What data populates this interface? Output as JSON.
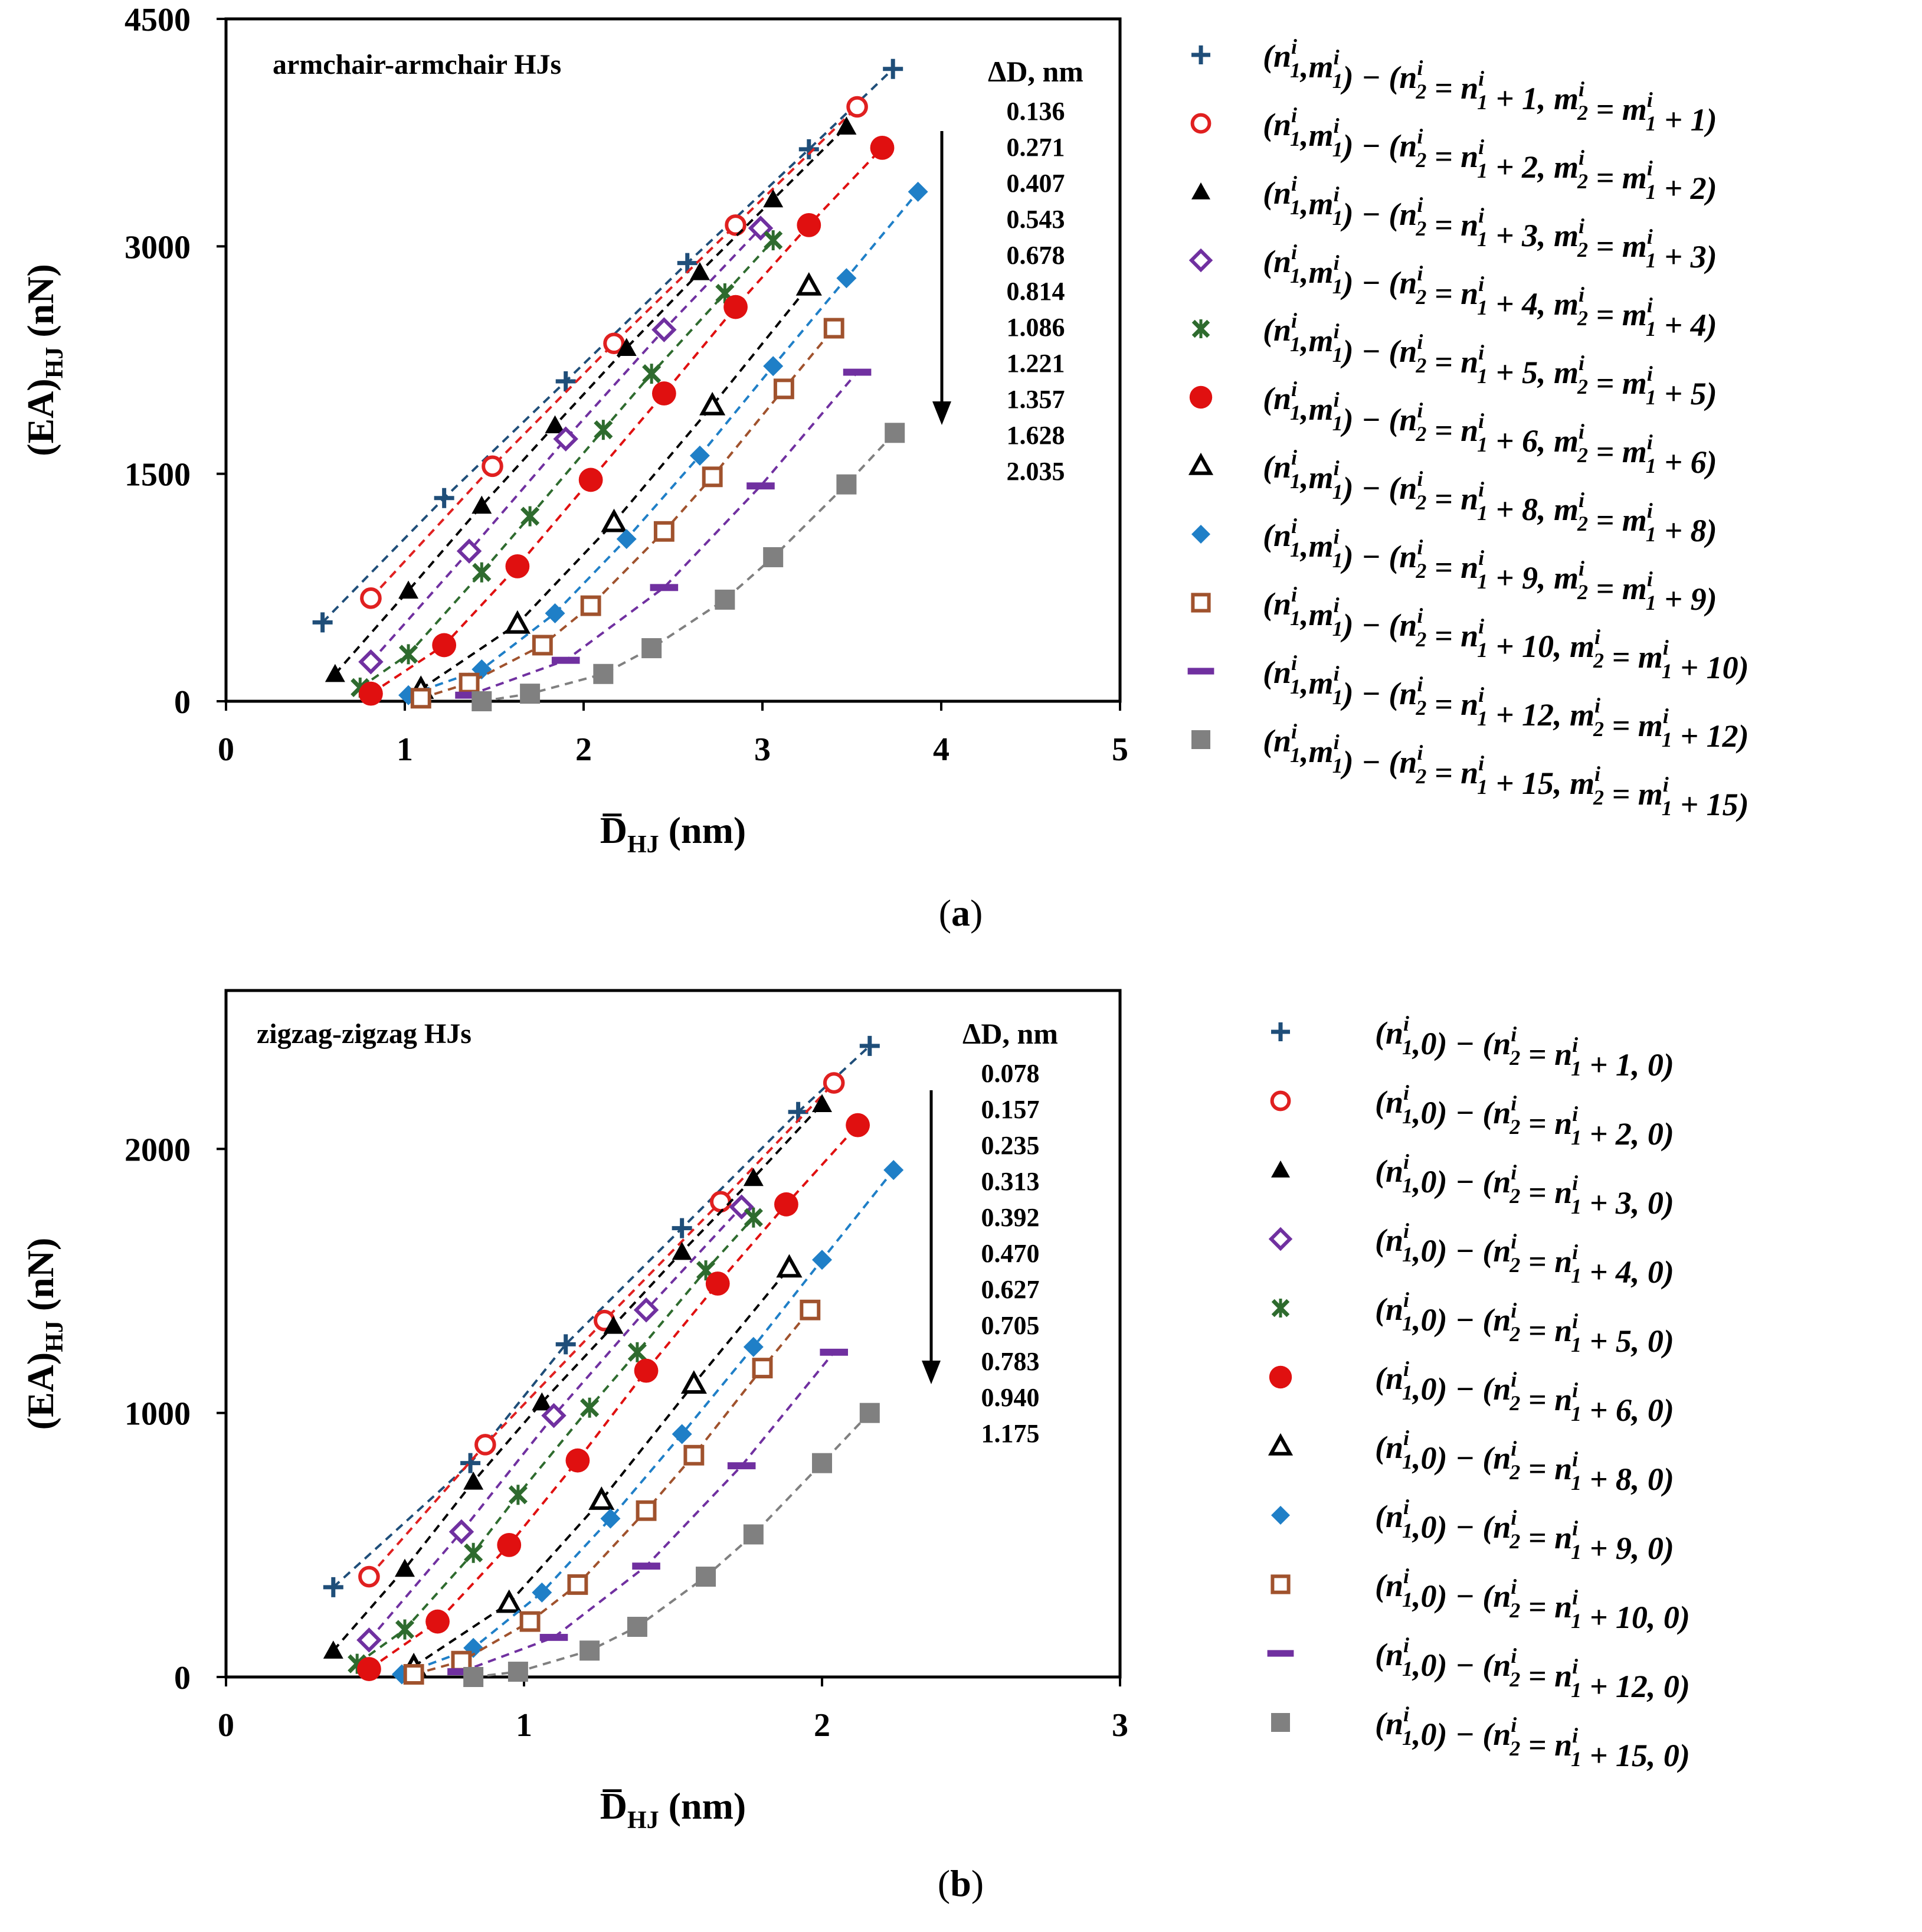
{
  "chart_data": [
    {
      "type": "scatter",
      "panel_label": "a",
      "title": "armchair-armchair HJs",
      "xlabel": "D̅",
      "xlabel_sub": "HJ",
      "xlabel_unit": " (nm)",
      "ylabel": "(EA)",
      "ylabel_sub": "HJ",
      "ylabel_unit": " (nN)",
      "xlim": [
        0,
        5
      ],
      "ylim": [
        0,
        4500
      ],
      "xticks": [
        0,
        1,
        2,
        3,
        4,
        5
      ],
      "yticks": [
        0,
        1500,
        3000,
        4500
      ],
      "xtick_labels": [
        "0",
        "1",
        "2",
        "3",
        "4",
        "5"
      ],
      "ytick_labels": [
        "0",
        "1500",
        "3000",
        "4500"
      ],
      "delta_d_header": "ΔD, nm",
      "delta_d_values": [
        "0.136",
        "0.271",
        "0.407",
        "0.543",
        "0.678",
        "0.814",
        "1.086",
        "1.221",
        "1.357",
        "1.628",
        "2.035"
      ],
      "series": [
        {
          "name": "(n1i,m1i) − (n2i = n1i + 1, m2i = m1i + 1)",
          "marker": "plus",
          "color": "#1f4e79",
          "x": [
            0.54,
            1.22,
            1.9,
            2.58,
            3.26,
            3.73
          ],
          "y": [
            520,
            1340,
            2110,
            2890,
            3640,
            4170
          ]
        },
        {
          "name": "(n1i,m1i) − (n2i = n1i + 2, m2i = m1i + 2)",
          "marker": "circle-open",
          "color": "#e02020",
          "x": [
            0.81,
            1.49,
            2.17,
            2.85,
            3.53
          ],
          "y": [
            680,
            1550,
            2360,
            3140,
            3920
          ]
        },
        {
          "name": "(n1i,m1i) − (n2i = n1i + 3, m2i = m1i + 3)",
          "marker": "triangle",
          "color": "#000000",
          "x": [
            0.61,
            1.02,
            1.43,
            1.84,
            2.24,
            2.65,
            3.06,
            3.47
          ],
          "y": [
            180,
            730,
            1290,
            1820,
            2330,
            2830,
            3310,
            3790
          ]
        },
        {
          "name": "(n1i,m1i) − (n2i = n1i + 4, m2i = m1i + 4)",
          "marker": "diamond-open",
          "color": "#7030a0",
          "x": [
            0.81,
            1.36,
            1.9,
            2.45,
            2.99
          ],
          "y": [
            260,
            990,
            1730,
            2450,
            3120
          ]
        },
        {
          "name": "(n1i,m1i) − (n2i = n1i + 5, m2i = m1i + 5)",
          "marker": "star",
          "color": "#2e6b2e",
          "x": [
            0.75,
            1.02,
            1.43,
            1.7,
            2.11,
            2.38,
            2.79,
            3.06
          ],
          "y": [
            90,
            310,
            850,
            1220,
            1790,
            2160,
            2690,
            3040
          ]
        },
        {
          "name": "(n1i,m1i) − (n2i = n1i + 6, m2i = m1i + 6)",
          "marker": "circle-filled",
          "color": "#e01010",
          "x": [
            0.81,
            1.22,
            1.63,
            2.04,
            2.45,
            2.85,
            3.26,
            3.67
          ],
          "y": [
            50,
            370,
            890,
            1460,
            2030,
            2600,
            3140,
            3650
          ]
        },
        {
          "name": "(n1i,m1i) − (n2i = n1i + 8, m2i = m1i + 8)",
          "marker": "triangle-open",
          "color": "#000000",
          "x": [
            1.09,
            1.63,
            2.17,
            2.72,
            3.26
          ],
          "y": [
            80,
            510,
            1180,
            1950,
            2740
          ]
        },
        {
          "name": "(n1i,m1i) − (n2i = n1i + 9, m2i = m1i + 9)",
          "marker": "diamond-filled",
          "color": "#1f7fc7",
          "x": [
            1.02,
            1.43,
            1.84,
            2.24,
            2.65,
            3.06,
            3.47,
            3.87
          ],
          "y": [
            40,
            210,
            580,
            1070,
            1620,
            2210,
            2790,
            3360
          ]
        },
        {
          "name": "(n1i,m1i) − (n2i = n1i + 10, m2i = m1i + 10)",
          "marker": "square-open",
          "color": "#a0522d",
          "x": [
            1.09,
            1.36,
            1.77,
            2.04,
            2.45,
            2.72,
            3.12,
            3.4
          ],
          "y": [
            20,
            120,
            370,
            630,
            1120,
            1480,
            2060,
            2460
          ]
        },
        {
          "name": "(n1i,m1i) − (n2i = n1i + 12, m2i = m1i + 12)",
          "marker": "dash",
          "color": "#7030a0",
          "x": [
            1.36,
            1.9,
            2.45,
            2.99,
            3.53
          ],
          "y": [
            40,
            270,
            750,
            1420,
            2170
          ]
        },
        {
          "name": "(n1i,m1i) − (n2i = n1i + 15, m2i = m1i + 15)",
          "marker": "square-filled",
          "color": "#808080",
          "x": [
            1.43,
            1.7,
            2.11,
            2.38,
            2.79,
            3.06,
            3.47,
            3.74
          ],
          "y": [
            0,
            50,
            180,
            350,
            670,
            950,
            1430,
            1770
          ]
        }
      ]
    },
    {
      "type": "scatter",
      "panel_label": "b",
      "title": "zigzag-zigzag HJs",
      "xlabel": "D̅",
      "xlabel_sub": "HJ",
      "xlabel_unit": " (nm)",
      "ylabel": "(EA)",
      "ylabel_sub": "HJ",
      "ylabel_unit": " (nN)",
      "xlim": [
        0,
        3
      ],
      "ylim": [
        0,
        2600
      ],
      "xticks": [
        0,
        1,
        2,
        3
      ],
      "yticks": [
        0,
        1000,
        2000
      ],
      "xtick_labels": [
        "0",
        "1",
        "2",
        "3"
      ],
      "ytick_labels": [
        "0",
        "1000",
        "2000"
      ],
      "delta_d_header": "ΔD, nm",
      "delta_d_values": [
        "0.078",
        "0.157",
        "0.235",
        "0.313",
        "0.392",
        "0.470",
        "0.627",
        "0.705",
        "0.783",
        "0.940",
        "1.175"
      ],
      "series": [
        {
          "name": "(n1i,0) − (n2i = n1i + 1, 0)",
          "marker": "plus",
          "color": "#1f4e79",
          "x": [
            0.36,
            0.82,
            1.14,
            1.53,
            1.92,
            2.16
          ],
          "y": [
            340,
            810,
            1260,
            1700,
            2140,
            2390
          ]
        },
        {
          "name": "(n1i,0) − (n2i = n1i + 2, 0)",
          "marker": "circle-open",
          "color": "#e02020",
          "x": [
            0.48,
            0.87,
            1.27,
            1.66,
            2.04
          ],
          "y": [
            380,
            880,
            1350,
            1800,
            2250
          ]
        },
        {
          "name": "(n1i,0) − (n2i = n1i + 3, 0)",
          "marker": "triangle",
          "color": "#000000",
          "x": [
            0.36,
            0.6,
            0.83,
            1.06,
            1.3,
            1.53,
            1.77,
            2.0
          ],
          "y": [
            100,
            410,
            740,
            1040,
            1330,
            1610,
            1890,
            2170
          ]
        },
        {
          "name": "(n1i,0) − (n2i = n1i + 4, 0)",
          "marker": "diamond-open",
          "color": "#7030a0",
          "x": [
            0.48,
            0.79,
            1.1,
            1.41,
            1.73
          ],
          "y": [
            140,
            550,
            990,
            1390,
            1780
          ]
        },
        {
          "name": "(n1i,0) − (n2i = n1i + 5, 0)",
          "marker": "star",
          "color": "#2e6b2e",
          "x": [
            0.44,
            0.6,
            0.83,
            0.98,
            1.22,
            1.38,
            1.61,
            1.77
          ],
          "y": [
            50,
            180,
            470,
            690,
            1020,
            1230,
            1540,
            1740
          ]
        },
        {
          "name": "(n1i,0) − (n2i = n1i + 6, 0)",
          "marker": "circle-filled",
          "color": "#e01010",
          "x": [
            0.48,
            0.71,
            0.95,
            1.18,
            1.41,
            1.65,
            1.88,
            2.12
          ],
          "y": [
            30,
            210,
            500,
            820,
            1160,
            1490,
            1790,
            2090
          ]
        },
        {
          "name": "(n1i,0) − (n2i = n1i + 8, 0)",
          "marker": "triangle-open",
          "color": "#000000",
          "x": [
            0.63,
            0.95,
            1.26,
            1.57,
            1.89
          ],
          "y": [
            40,
            280,
            670,
            1110,
            1550
          ]
        },
        {
          "name": "(n1i,0) − (n2i = n1i + 9, 0)",
          "marker": "diamond-filled",
          "color": "#1f7fc7",
          "x": [
            0.59,
            0.83,
            1.06,
            1.29,
            1.53,
            1.77,
            2.0,
            2.24
          ],
          "y": [
            10,
            110,
            320,
            600,
            920,
            1250,
            1580,
            1920
          ]
        },
        {
          "name": "(n1i,0) − (n2i = n1i + 10, 0)",
          "marker": "square-open",
          "color": "#a0522d",
          "x": [
            0.63,
            0.79,
            1.02,
            1.18,
            1.41,
            1.57,
            1.8,
            1.96
          ],
          "y": [
            10,
            60,
            210,
            350,
            630,
            840,
            1170,
            1390
          ]
        },
        {
          "name": "(n1i,0) − (n2i = n1i + 12, 0)",
          "marker": "dash",
          "color": "#7030a0",
          "x": [
            0.79,
            1.1,
            1.41,
            1.73,
            2.04
          ],
          "y": [
            20,
            150,
            420,
            800,
            1230
          ]
        },
        {
          "name": "(n1i,0) − (n2i = n1i + 15, 0)",
          "marker": "square-filled",
          "color": "#808080",
          "x": [
            0.83,
            0.98,
            1.22,
            1.38,
            1.61,
            1.77,
            2.0,
            2.16
          ],
          "y": [
            0,
            20,
            100,
            190,
            380,
            540,
            810,
            1000
          ]
        }
      ]
    }
  ]
}
